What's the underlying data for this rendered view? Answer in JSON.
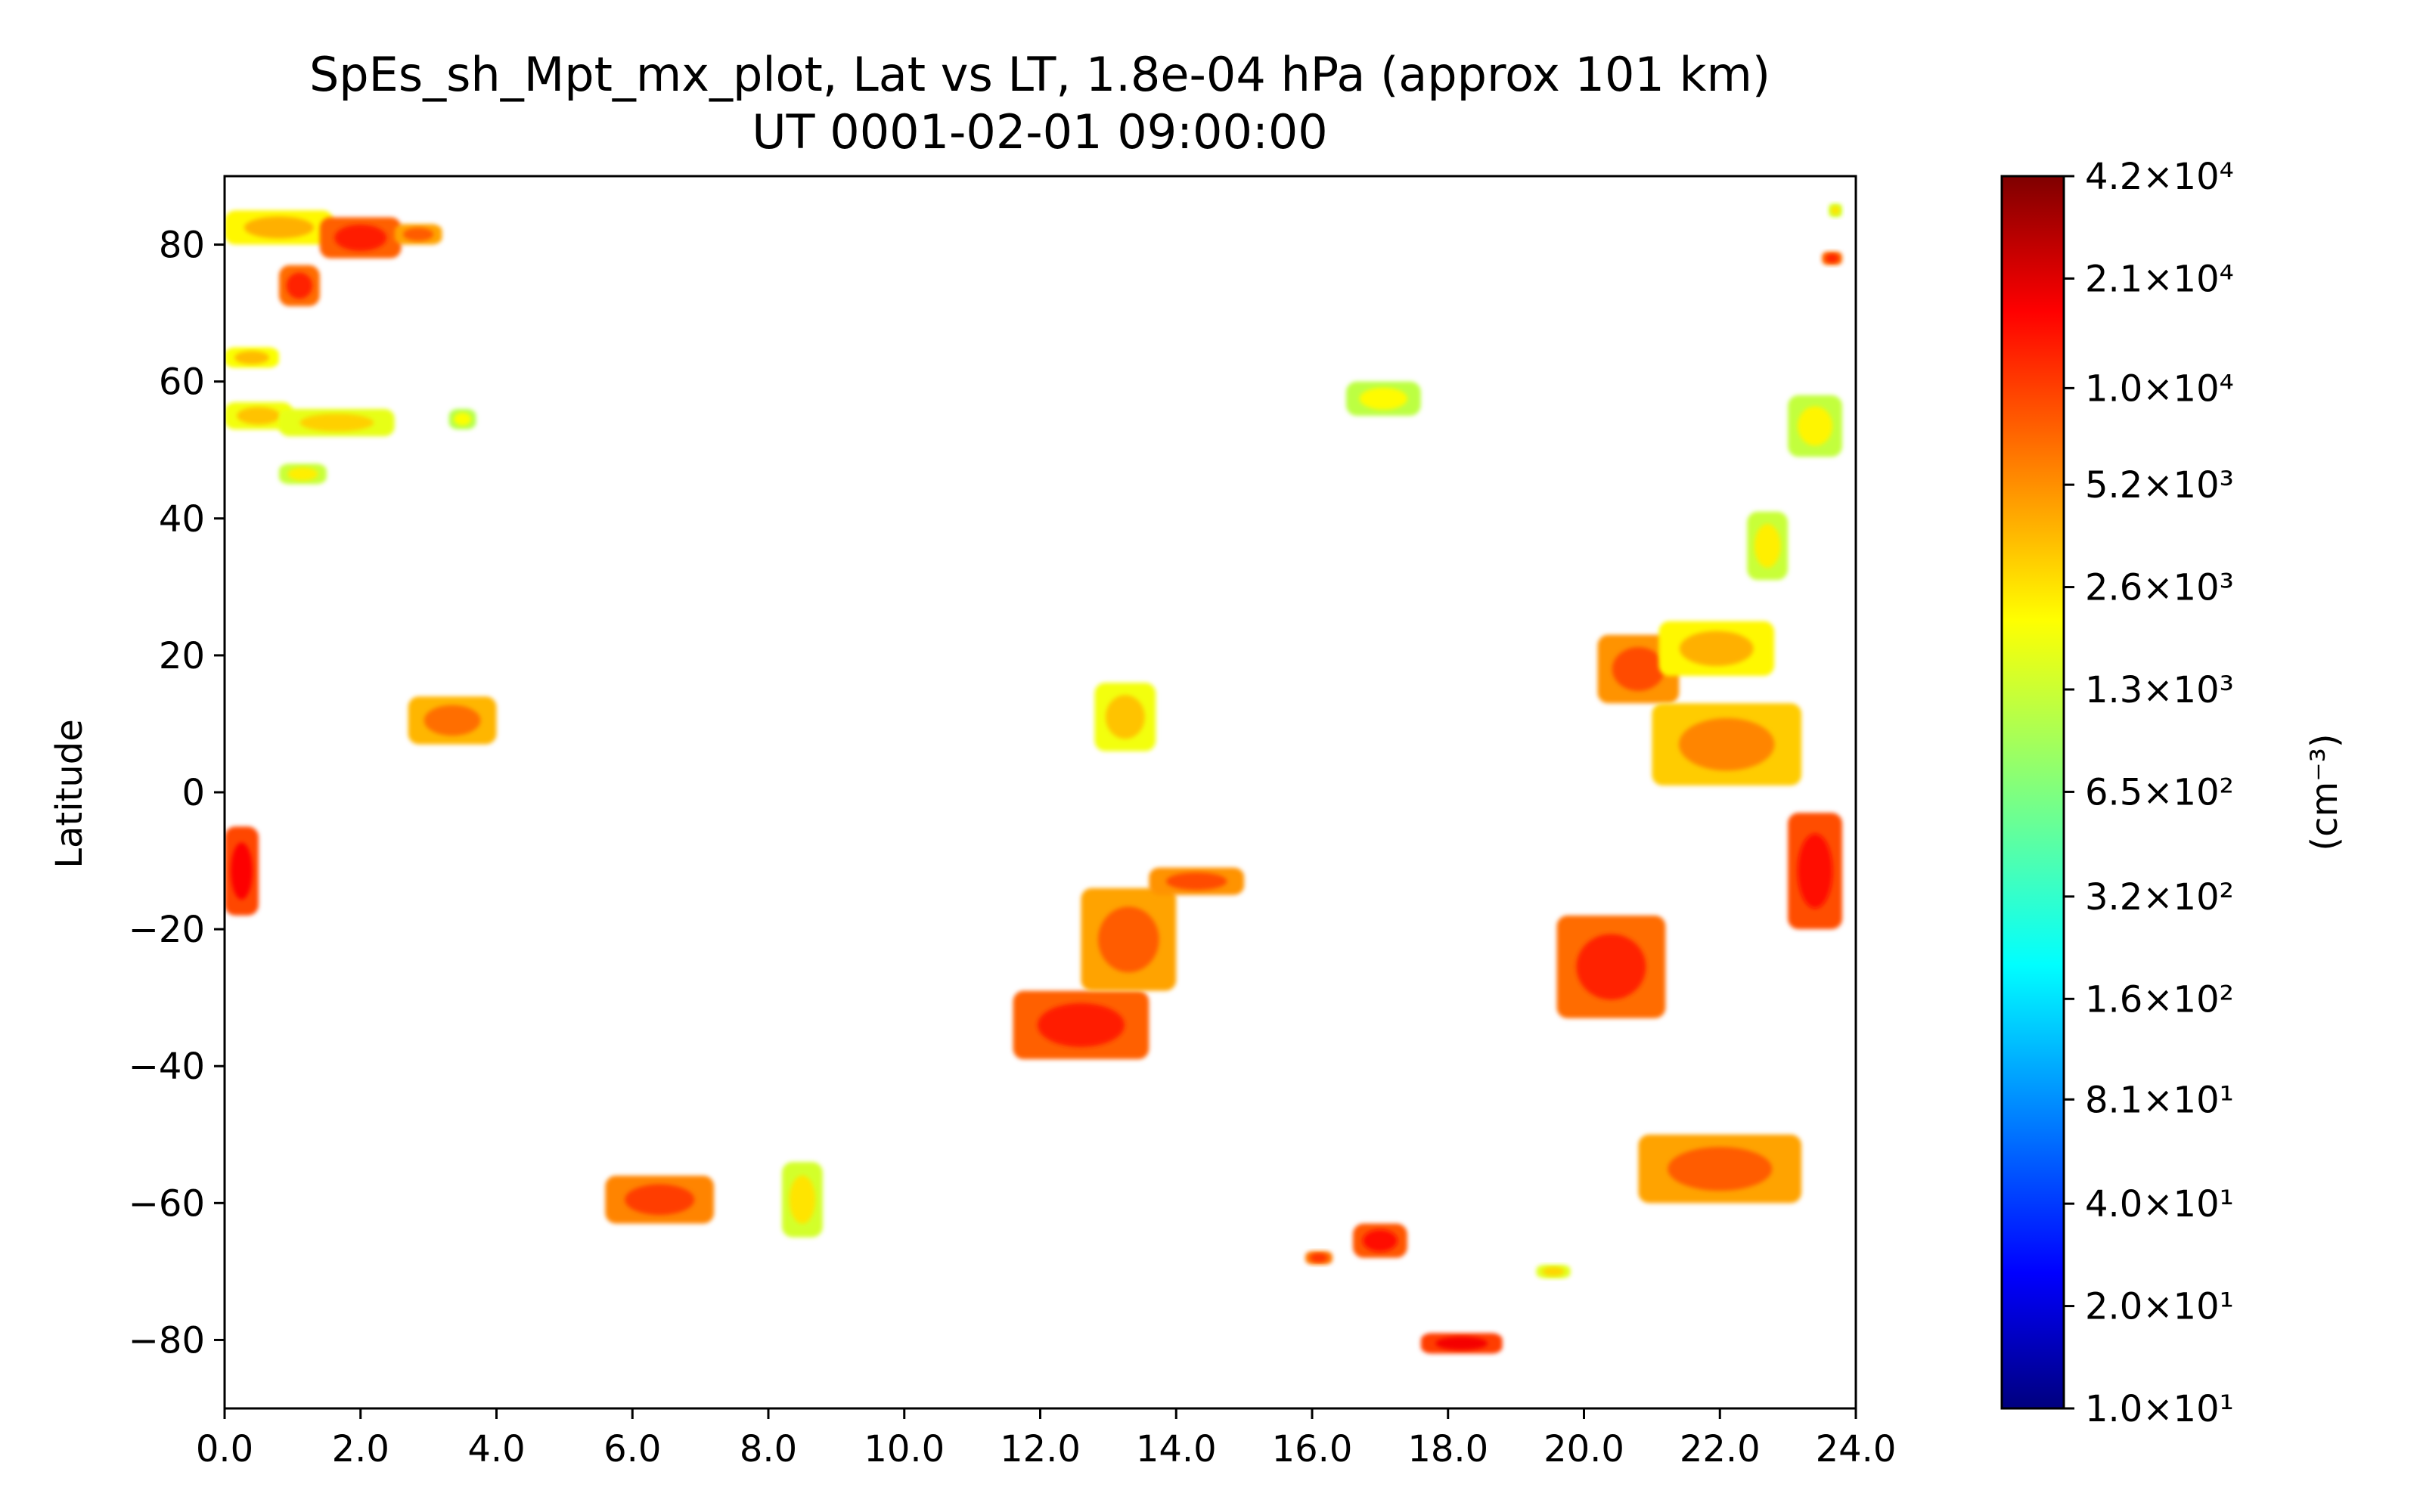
{
  "chart_data": {
    "type": "heatmap",
    "title": "SpEs_sh_Mpt_mx_plot, Lat vs LT, 1.8e-04 hPa (approx 101 km)",
    "subtitle": "UT 0001-02-01 09:00:00",
    "xlabel": "",
    "ylabel": "Latitude",
    "xlim": [
      0,
      24
    ],
    "ylim": [
      -90,
      90
    ],
    "x_ticks": [
      "0.0",
      "2.0",
      "4.0",
      "6.0",
      "8.0",
      "10.0",
      "12.0",
      "14.0",
      "16.0",
      "18.0",
      "20.0",
      "22.0",
      "24.0"
    ],
    "y_ticks": [
      "80",
      "60",
      "40",
      "20",
      "0",
      "−20",
      "−40",
      "−60",
      "−80"
    ],
    "colorbar": {
      "label": "(cm⁻³)",
      "scale": "log",
      "range": [
        10,
        42000
      ],
      "colormap": "jet",
      "tick_labels": [
        "4.2×10⁴",
        "2.1×10⁴",
        "1.0×10⁴",
        "5.2×10³",
        "2.6×10³",
        "1.3×10³",
        "6.5×10²",
        "3.2×10²",
        "1.6×10²",
        "8.1×10¹",
        "4.0×10¹",
        "2.0×10¹",
        "1.0×10¹"
      ],
      "tick_values": [
        42000,
        21000,
        10000,
        5200,
        2600,
        1300,
        650,
        320,
        160,
        81,
        40,
        20,
        10
      ]
    },
    "regions": [
      {
        "lt": [
          0.0,
          1.6
        ],
        "lat": [
          80,
          85
        ],
        "value": 3500
      },
      {
        "lt": [
          1.4,
          2.6
        ],
        "lat": [
          78,
          84
        ],
        "value": 12000
      },
      {
        "lt": [
          2.5,
          3.2
        ],
        "lat": [
          80,
          83
        ],
        "value": 7000
      },
      {
        "lt": [
          0.8,
          1.4
        ],
        "lat": [
          71,
          77
        ],
        "value": 11000
      },
      {
        "lt": [
          0.0,
          0.8
        ],
        "lat": [
          62,
          65
        ],
        "value": 3200
      },
      {
        "lt": [
          0.0,
          1.0
        ],
        "lat": [
          53,
          57
        ],
        "value": 3000
      },
      {
        "lt": [
          0.8,
          2.5
        ],
        "lat": [
          52,
          56
        ],
        "value": 2700
      },
      {
        "lt": [
          3.3,
          3.7
        ],
        "lat": [
          53,
          56
        ],
        "value": 1800
      },
      {
        "lt": [
          0.8,
          1.5
        ],
        "lat": [
          45,
          48
        ],
        "value": 2100
      },
      {
        "lt": [
          2.7,
          4.0
        ],
        "lat": [
          7,
          14
        ],
        "value": 6000
      },
      {
        "lt": [
          0.0,
          0.5
        ],
        "lat": [
          -18,
          -5
        ],
        "value": 15000
      },
      {
        "lt": [
          5.6,
          7.2
        ],
        "lat": [
          -63,
          -56
        ],
        "value": 9000
      },
      {
        "lt": [
          8.2,
          8.8
        ],
        "lat": [
          -65,
          -54
        ],
        "value": 2300
      },
      {
        "lt": [
          11.6,
          13.6
        ],
        "lat": [
          -39,
          -29
        ],
        "value": 12000
      },
      {
        "lt": [
          12.6,
          14.0
        ],
        "lat": [
          -29,
          -14
        ],
        "value": 7000
      },
      {
        "lt": [
          13.6,
          15.0
        ],
        "lat": [
          -15,
          -11
        ],
        "value": 8000
      },
      {
        "lt": [
          12.8,
          13.7
        ],
        "lat": [
          6,
          16
        ],
        "value": 3000
      },
      {
        "lt": [
          16.5,
          17.6
        ],
        "lat": [
          55,
          60
        ],
        "value": 1900
      },
      {
        "lt": [
          16.6,
          17.4
        ],
        "lat": [
          -68,
          -63
        ],
        "value": 13000
      },
      {
        "lt": [
          15.9,
          16.3
        ],
        "lat": [
          -69,
          -67
        ],
        "value": 10000
      },
      {
        "lt": [
          17.6,
          18.8
        ],
        "lat": [
          -82,
          -79
        ],
        "value": 16000
      },
      {
        "lt": [
          19.3,
          19.8
        ],
        "lat": [
          -71,
          -69
        ],
        "value": 2600
      },
      {
        "lt": [
          19.6,
          21.2
        ],
        "lat": [
          -33,
          -18
        ],
        "value": 11000
      },
      {
        "lt": [
          20.8,
          23.2
        ],
        "lat": [
          -60,
          -50
        ],
        "value": 7000
      },
      {
        "lt": [
          20.2,
          21.4
        ],
        "lat": [
          13,
          23
        ],
        "value": 8000
      },
      {
        "lt": [
          21.1,
          22.8
        ],
        "lat": [
          17,
          25
        ],
        "value": 3500
      },
      {
        "lt": [
          21.0,
          23.2
        ],
        "lat": [
          1,
          13
        ],
        "value": 5000
      },
      {
        "lt": [
          23.0,
          23.8
        ],
        "lat": [
          -20,
          -3
        ],
        "value": 14000
      },
      {
        "lt": [
          22.4,
          23.0
        ],
        "lat": [
          31,
          41
        ],
        "value": 2100
      },
      {
        "lt": [
          23.0,
          23.8
        ],
        "lat": [
          49,
          58
        ],
        "value": 2000
      },
      {
        "lt": [
          23.5,
          23.8
        ],
        "lat": [
          77,
          79
        ],
        "value": 11000
      },
      {
        "lt": [
          23.6,
          23.8
        ],
        "lat": [
          84,
          86
        ],
        "value": 2300
      }
    ]
  }
}
